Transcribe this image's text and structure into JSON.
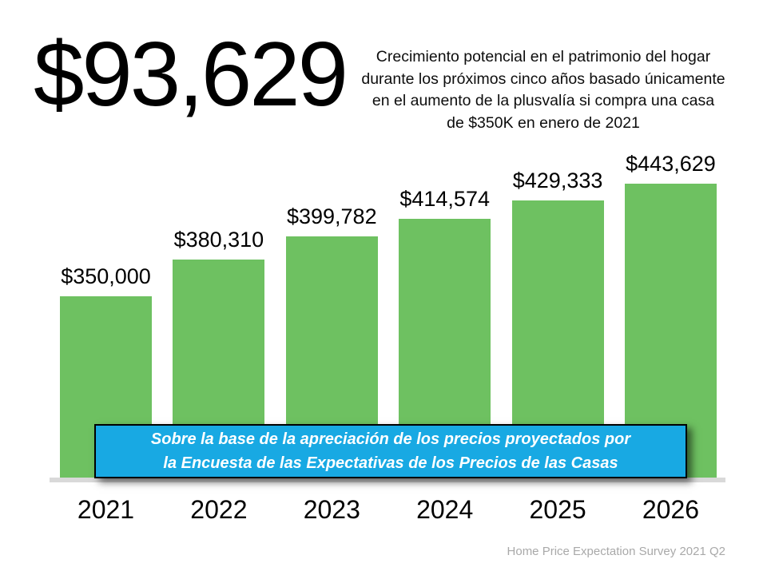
{
  "headline": {
    "amount": "$93,629"
  },
  "description": {
    "lines": [
      "Crecimiento potencial en el patrimonio del hogar",
      "durante los próximos cinco años basado únicamente",
      "en el aumento de la plusvalía si compra una casa",
      "de $350K en enero de 2021"
    ]
  },
  "chart_data": {
    "type": "bar",
    "categories": [
      "2021",
      "2022",
      "2023",
      "2024",
      "2025",
      "2026"
    ],
    "values": [
      350000,
      380310,
      399782,
      414574,
      429333,
      443629
    ],
    "labels": [
      "$350,000",
      "$380,310",
      "$399,782",
      "$414,574",
      "$429,333",
      "$443,629"
    ],
    "title": "",
    "xlabel": "",
    "ylabel": "",
    "ylim": [
      200000,
      450000
    ],
    "grid": false,
    "legend": false,
    "bar_color": "#6ec161",
    "baseline_color": "#d9d9d9"
  },
  "banner": {
    "lines": [
      "Sobre la base de la apreciación de los precios proyectados por",
      "la Encuesta de las Expectativas de los Precios de las Casas"
    ],
    "bg_color": "#18a9e3",
    "text_color": "#ffffff"
  },
  "footer": {
    "source": "Home Price Expectation Survey 2021 Q2",
    "color": "#a9a9a9"
  }
}
